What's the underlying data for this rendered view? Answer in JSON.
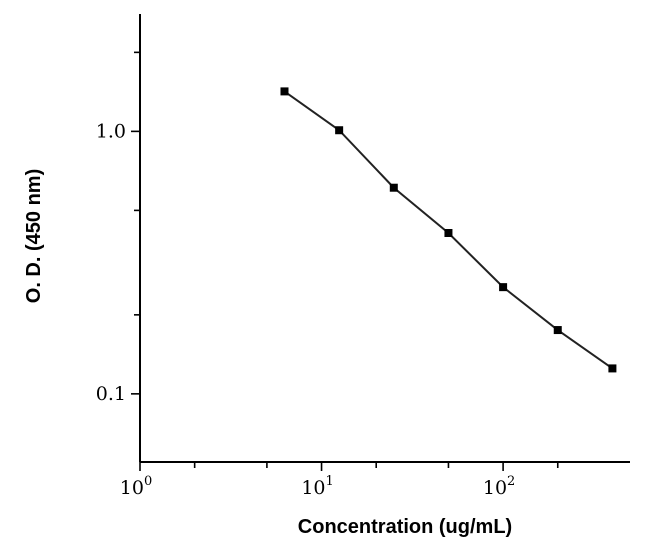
{
  "chart_data": {
    "type": "line",
    "title": "",
    "xlabel": "Concentration (ug/mL)",
    "ylabel": "O. D. (450 nm)",
    "x_scale": "log",
    "y_scale": "log",
    "xlim": [
      1,
      500
    ],
    "ylim": [
      0.055,
      2.8
    ],
    "x_ticks": [
      {
        "value": 1,
        "base": "10",
        "exp": "0"
      },
      {
        "value": 10,
        "base": "10",
        "exp": "1"
      },
      {
        "value": 100,
        "base": "10",
        "exp": "2"
      }
    ],
    "y_ticks": [
      {
        "value": 0.1,
        "label": "0.1"
      },
      {
        "value": 1.0,
        "label": "1.0"
      }
    ],
    "grid": false,
    "series": [
      {
        "color": "#000000",
        "x": [
          6.25,
          12.5,
          25,
          50,
          100,
          200,
          400
        ],
        "y": [
          1.42,
          1.01,
          0.61,
          0.41,
          0.255,
          0.175,
          0.125
        ]
      }
    ]
  }
}
